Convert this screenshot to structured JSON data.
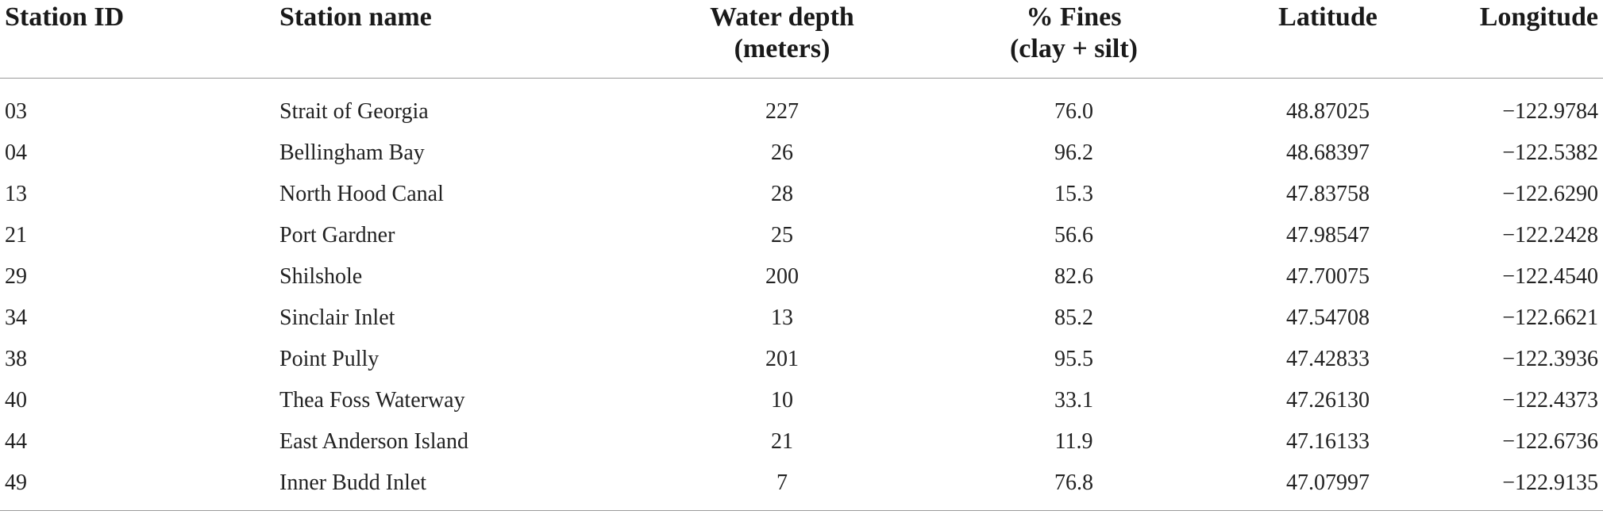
{
  "table": {
    "headers": [
      {
        "line1": "Station ID",
        "line2": ""
      },
      {
        "line1": "Station name",
        "line2": ""
      },
      {
        "line1": "Water depth",
        "line2": "(meters)"
      },
      {
        "line1": "% Fines",
        "line2": "(clay + silt)"
      },
      {
        "line1": "Latitude",
        "line2": ""
      },
      {
        "line1": "Longitude",
        "line2": ""
      }
    ],
    "rows": [
      {
        "id": "03",
        "name": "Strait of Georgia",
        "depth": "227",
        "fines": "76.0",
        "lat": "48.87025",
        "lon": "−122.9784"
      },
      {
        "id": "04",
        "name": "Bellingham Bay",
        "depth": "26",
        "fines": "96.2",
        "lat": "48.68397",
        "lon": "−122.5382"
      },
      {
        "id": "13",
        "name": "North Hood Canal",
        "depth": "28",
        "fines": "15.3",
        "lat": "47.83758",
        "lon": "−122.6290"
      },
      {
        "id": "21",
        "name": "Port Gardner",
        "depth": "25",
        "fines": "56.6",
        "lat": "47.98547",
        "lon": "−122.2428"
      },
      {
        "id": "29",
        "name": "Shilshole",
        "depth": "200",
        "fines": "82.6",
        "lat": "47.70075",
        "lon": "−122.4540"
      },
      {
        "id": "34",
        "name": "Sinclair Inlet",
        "depth": "13",
        "fines": "85.2",
        "lat": "47.54708",
        "lon": "−122.6621"
      },
      {
        "id": "38",
        "name": "Point Pully",
        "depth": "201",
        "fines": "95.5",
        "lat": "47.42833",
        "lon": "−122.3936"
      },
      {
        "id": "40",
        "name": "Thea Foss Waterway",
        "depth": "10",
        "fines": "33.1",
        "lat": "47.26130",
        "lon": "−122.4373"
      },
      {
        "id": "44",
        "name": "East Anderson Island",
        "depth": "21",
        "fines": "11.9",
        "lat": "47.16133",
        "lon": "−122.6736"
      },
      {
        "id": "49",
        "name": "Inner Budd Inlet",
        "depth": "7",
        "fines": "76.8",
        "lat": "47.07997",
        "lon": "−122.9135"
      }
    ]
  }
}
